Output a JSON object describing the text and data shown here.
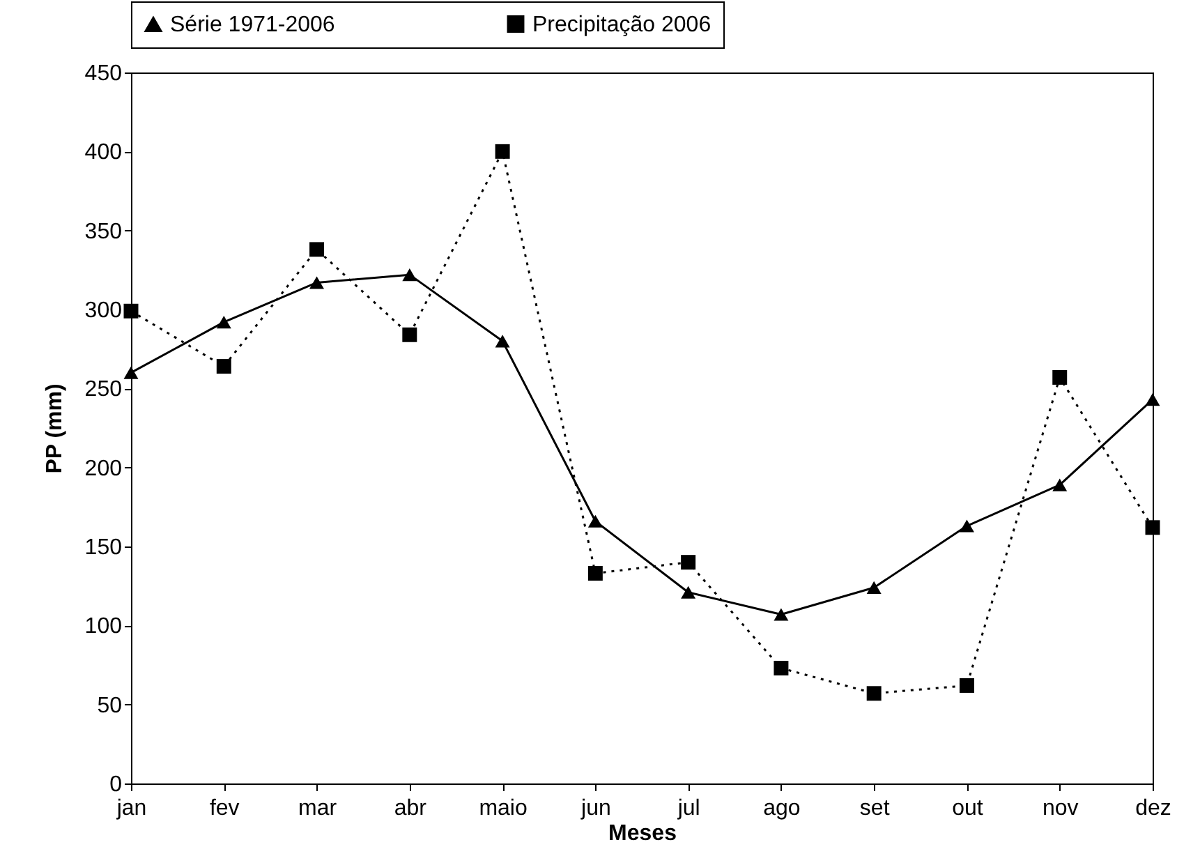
{
  "chart_data": {
    "type": "line",
    "xlabel": "Meses",
    "ylabel": "PP (mm)",
    "categories": [
      "jan",
      "fev",
      "mar",
      "abr",
      "maio",
      "jun",
      "jul",
      "ago",
      "set",
      "out",
      "nov",
      "dez"
    ],
    "series": [
      {
        "name": "Série 1971-2006",
        "color": "#000000",
        "marker": "triangle",
        "line_style": "solid",
        "values": [
          260,
          292,
          317,
          322,
          280,
          166,
          121,
          107,
          124,
          163,
          189,
          243
        ]
      },
      {
        "name": "Precipitação 2006",
        "color": "#000000",
        "marker": "square",
        "line_style": "dotted",
        "values": [
          299,
          264,
          338,
          284,
          400,
          133,
          140,
          73,
          57,
          62,
          257,
          162
        ]
      }
    ],
    "ylim": [
      0,
      450
    ],
    "yticks": [
      0,
      50,
      100,
      150,
      200,
      250,
      300,
      350,
      400,
      450
    ],
    "grid": false,
    "legend": "top"
  }
}
